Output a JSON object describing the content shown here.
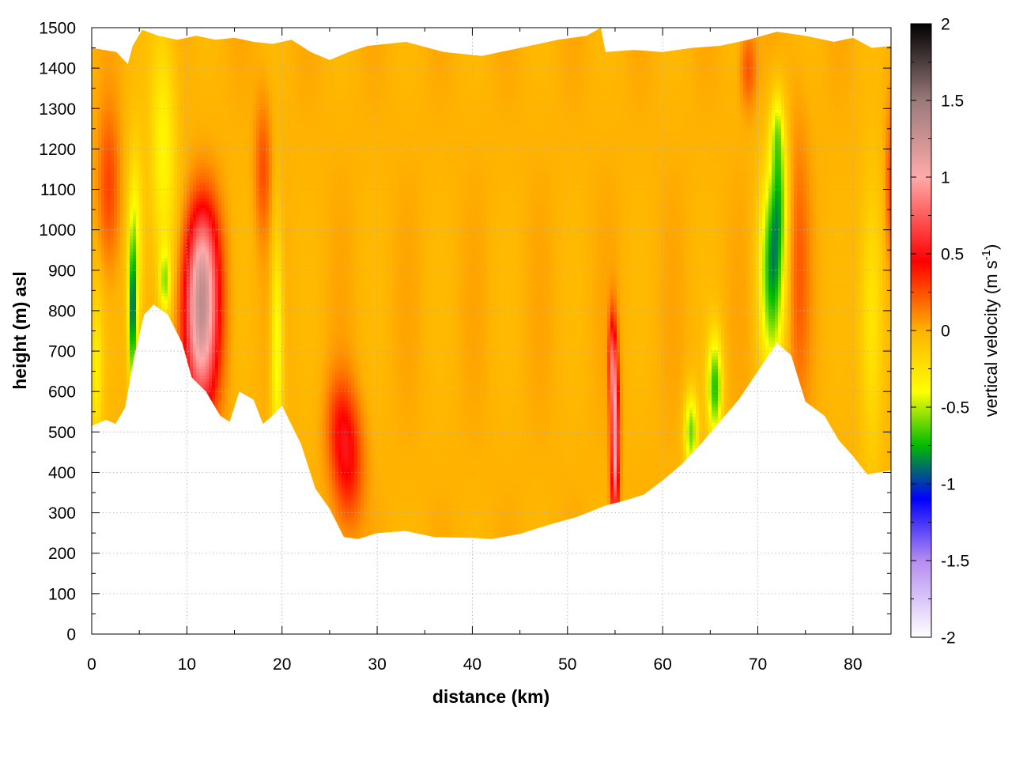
{
  "chart_data": {
    "type": "heatmap",
    "title": "",
    "xlabel": "distance (km)",
    "ylabel": "height (m) asl",
    "xlim": [
      0,
      84
    ],
    "ylim": [
      0,
      1500
    ],
    "xticks": [
      0,
      10,
      20,
      30,
      40,
      50,
      60,
      70,
      80
    ],
    "yticks": [
      0,
      100,
      200,
      300,
      400,
      500,
      600,
      700,
      800,
      900,
      1000,
      1100,
      1200,
      1300,
      1400,
      1500
    ],
    "grid": true,
    "colorbar": {
      "label_main": "vertical velocity (m s",
      "label_sup": "-1",
      "label_close": ")",
      "range": [
        -2,
        2
      ],
      "ticks": [
        "2",
        "1.5",
        "1",
        "0.5",
        "0",
        "-0.5",
        "-1",
        "-1.5",
        "-2"
      ],
      "stops": [
        {
          "value": -2.0,
          "color": "#ffffff"
        },
        {
          "value": -1.5,
          "color": "#b58cf0"
        },
        {
          "value": -1.1,
          "color": "#0000ff"
        },
        {
          "value": -0.75,
          "color": "#00bb00"
        },
        {
          "value": -0.4,
          "color": "#ffff00"
        },
        {
          "value": 0.0,
          "color": "#ffb300"
        },
        {
          "value": 0.45,
          "color": "#ff0000"
        },
        {
          "value": 1.0,
          "color": "#ffaaaa"
        },
        {
          "value": 1.5,
          "color": "#9a7a7a"
        },
        {
          "value": 2.0,
          "color": "#000000"
        }
      ]
    },
    "background_velocity": 0.0,
    "terrain_bottom": [
      [
        0,
        515
      ],
      [
        1.5,
        530
      ],
      [
        2.5,
        520
      ],
      [
        3.5,
        560
      ],
      [
        4.5,
        690
      ],
      [
        5.5,
        790
      ],
      [
        6.5,
        815
      ],
      [
        8,
        790
      ],
      [
        9.5,
        720
      ],
      [
        10.5,
        635
      ],
      [
        12,
        600
      ],
      [
        13.5,
        540
      ],
      [
        14.5,
        525
      ],
      [
        15.5,
        600
      ],
      [
        17,
        580
      ],
      [
        18,
        520
      ],
      [
        19,
        540
      ],
      [
        20,
        565
      ],
      [
        22,
        470
      ],
      [
        23.5,
        360
      ],
      [
        25,
        310
      ],
      [
        26.5,
        240
      ],
      [
        28,
        235
      ],
      [
        30,
        250
      ],
      [
        33,
        255
      ],
      [
        36,
        240
      ],
      [
        40,
        238
      ],
      [
        42,
        235
      ],
      [
        45,
        248
      ],
      [
        48,
        270
      ],
      [
        51,
        290
      ],
      [
        54,
        318
      ],
      [
        56,
        330
      ],
      [
        58,
        345
      ],
      [
        60,
        380
      ],
      [
        62,
        420
      ],
      [
        64,
        470
      ],
      [
        66,
        525
      ],
      [
        68,
        580
      ],
      [
        70,
        650
      ],
      [
        72,
        720
      ],
      [
        73.5,
        690
      ],
      [
        75,
        575
      ],
      [
        77,
        540
      ],
      [
        78.5,
        480
      ],
      [
        80,
        440
      ],
      [
        81.5,
        395
      ],
      [
        84,
        405
      ]
    ],
    "terrain_top": [
      [
        0,
        1450
      ],
      [
        1.3,
        1445
      ],
      [
        2.6,
        1440
      ],
      [
        3.8,
        1410
      ],
      [
        4.3,
        1455
      ],
      [
        5.3,
        1495
      ],
      [
        7,
        1480
      ],
      [
        9,
        1470
      ],
      [
        11,
        1480
      ],
      [
        13,
        1470
      ],
      [
        15,
        1475
      ],
      [
        17,
        1465
      ],
      [
        19,
        1460
      ],
      [
        21,
        1470
      ],
      [
        23,
        1440
      ],
      [
        25,
        1420
      ],
      [
        27,
        1440
      ],
      [
        29,
        1455
      ],
      [
        33,
        1465
      ],
      [
        37,
        1440
      ],
      [
        41,
        1430
      ],
      [
        45,
        1450
      ],
      [
        49,
        1470
      ],
      [
        52,
        1480
      ],
      [
        53.5,
        1500
      ],
      [
        54,
        1440
      ],
      [
        57,
        1445
      ],
      [
        60,
        1440
      ],
      [
        63,
        1450
      ],
      [
        66,
        1455
      ],
      [
        69,
        1470
      ],
      [
        72,
        1490
      ],
      [
        75,
        1480
      ],
      [
        78,
        1465
      ],
      [
        80,
        1475
      ],
      [
        82,
        1450
      ],
      [
        84,
        1455
      ]
    ],
    "features": [
      {
        "x": 1.8,
        "y": 1100,
        "sx": 0.8,
        "sy": 140,
        "w": 0.3
      },
      {
        "x": 11.5,
        "y": 760,
        "sx": 1.3,
        "sy": 150,
        "w": 1.1
      },
      {
        "x": 11.7,
        "y": 940,
        "sx": 1.2,
        "sy": 110,
        "w": 0.5
      },
      {
        "x": 4.3,
        "y": 780,
        "sx": 0.3,
        "sy": 140,
        "w": -0.75
      },
      {
        "x": 4.6,
        "y": 960,
        "sx": 0.6,
        "sy": 180,
        "w": -0.4
      },
      {
        "x": 7.5,
        "y": 1200,
        "sx": 1.0,
        "sy": 220,
        "w": -0.35
      },
      {
        "x": 7.7,
        "y": 870,
        "sx": 0.4,
        "sy": 60,
        "w": -0.45
      },
      {
        "x": 18.0,
        "y": 1150,
        "sx": 0.6,
        "sy": 120,
        "w": 0.25
      },
      {
        "x": 19.5,
        "y": 700,
        "sx": 0.45,
        "sy": 220,
        "w": -0.45
      },
      {
        "x": 27.0,
        "y": 420,
        "sx": 1.1,
        "sy": 110,
        "w": 0.4
      },
      {
        "x": 26.0,
        "y": 520,
        "sx": 1.0,
        "sy": 90,
        "w": 0.25
      },
      {
        "x": 55.0,
        "y": 480,
        "sx": 0.3,
        "sy": 140,
        "w": 1.1
      },
      {
        "x": 54.7,
        "y": 680,
        "sx": 0.25,
        "sy": 80,
        "w": 0.6
      },
      {
        "x": 65.5,
        "y": 610,
        "sx": 0.55,
        "sy": 90,
        "w": -0.7
      },
      {
        "x": 63.0,
        "y": 500,
        "sx": 0.5,
        "sy": 70,
        "w": -0.6
      },
      {
        "x": 71.5,
        "y": 900,
        "sx": 0.9,
        "sy": 170,
        "w": -0.75
      },
      {
        "x": 72.3,
        "y": 1100,
        "sx": 0.6,
        "sy": 130,
        "w": -0.45
      },
      {
        "x": 72.0,
        "y": 1250,
        "sx": 0.5,
        "sy": 70,
        "w": -0.3
      },
      {
        "x": 74.3,
        "y": 900,
        "sx": 0.8,
        "sy": 250,
        "w": 0.2
      },
      {
        "x": 69.0,
        "y": 1400,
        "sx": 0.6,
        "sy": 70,
        "w": 0.25
      },
      {
        "x": 82.0,
        "y": 780,
        "sx": 0.9,
        "sy": 250,
        "w": -0.3
      },
      {
        "x": 84.0,
        "y": 1100,
        "sx": 0.4,
        "sy": 140,
        "w": 0.3
      },
      {
        "x": 0.5,
        "y": 650,
        "sx": 0.5,
        "sy": 150,
        "w": -0.3
      }
    ]
  }
}
